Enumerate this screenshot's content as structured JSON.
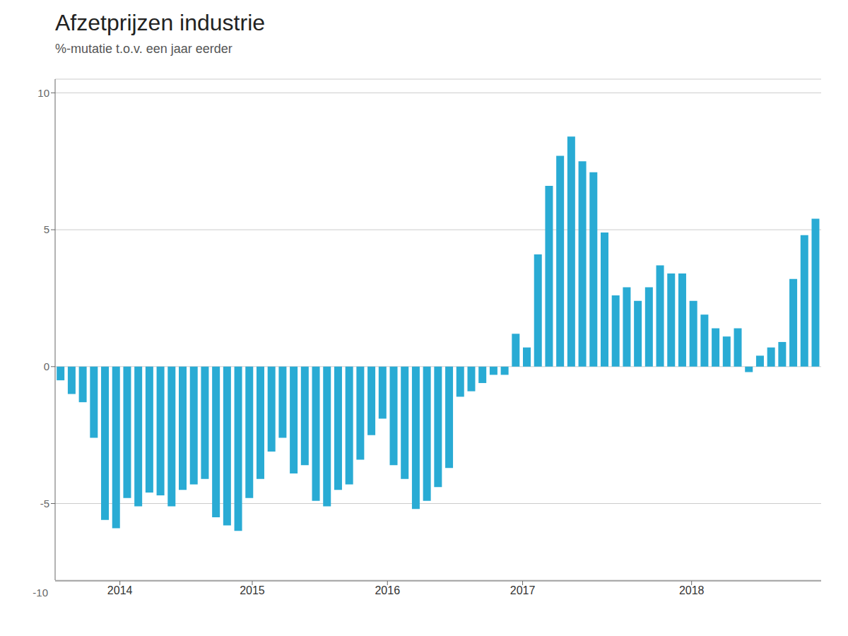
{
  "chart_data": {
    "type": "bar",
    "title": "Afzetprijzen industrie",
    "subtitle": "%-mutatie t.o.v. een jaar eerder",
    "categories": [
      null,
      null,
      null,
      null,
      null,
      null,
      null,
      null,
      null,
      null,
      null,
      null,
      null,
      null,
      null,
      null,
      null,
      null,
      null,
      null,
      null,
      null,
      null,
      null,
      null,
      null,
      null,
      null,
      null,
      null,
      null,
      null,
      null,
      null,
      null,
      null,
      null,
      null,
      null,
      null,
      null,
      null,
      null,
      null,
      null,
      null,
      null,
      null,
      null,
      null,
      null,
      null,
      null,
      null,
      null,
      null,
      null,
      null,
      null,
      null,
      null,
      null,
      null,
      null,
      null,
      null,
      null,
      null,
      null
    ],
    "values": [
      -0.5,
      -1.0,
      -1.3,
      -2.6,
      -5.6,
      -5.9,
      -4.8,
      -5.1,
      -4.6,
      -4.7,
      -5.1,
      -4.5,
      -4.3,
      -4.1,
      -5.5,
      -5.8,
      -6.0,
      -4.8,
      -4.1,
      -3.1,
      -2.6,
      -3.9,
      -3.6,
      -4.9,
      -5.1,
      -4.5,
      -4.3,
      -3.4,
      -2.5,
      -1.9,
      -3.6,
      -4.1,
      -5.2,
      -4.9,
      -4.4,
      -3.7,
      -1.1,
      -0.9,
      -0.6,
      -0.3,
      -0.3,
      1.2,
      0.7,
      4.1,
      6.6,
      7.7,
      8.4,
      7.5,
      7.1,
      4.9,
      2.6,
      2.9,
      2.4,
      2.9,
      3.7,
      3.4,
      3.4,
      2.4,
      1.9,
      1.4,
      1.1,
      1.4,
      -0.2,
      0.4,
      0.7,
      0.9,
      3.2,
      4.8,
      5.4
    ],
    "color": "#29ABD4",
    "ylim": [
      -7.8,
      10.5
    ],
    "yticks": [
      -5,
      0,
      5,
      10
    ],
    "grid": true,
    "tick_labels": "y",
    "annotations": [
      {
        "text": "2014",
        "x": 5.75
      },
      {
        "text": "2015",
        "x": 17.5
      },
      {
        "text": "2016",
        "x": 29.5
      },
      {
        "text": "2017",
        "x": 41.5
      },
      {
        "text": "2018",
        "x": 56.5
      },
      {
        "text": "-10"
      }
    ]
  }
}
